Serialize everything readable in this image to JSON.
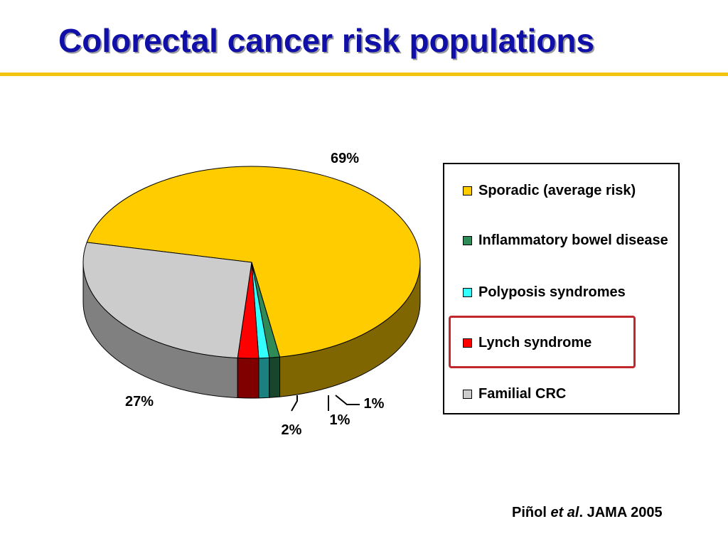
{
  "slide": {
    "title": "Colorectal cancer risk populations"
  },
  "citation": {
    "author": "Piñol",
    "etal": "et al",
    "rest": ". JAMA 2005"
  },
  "chart_data": {
    "type": "pie",
    "style": "3d",
    "title": "",
    "legend_position": "right",
    "highlighted": "Lynch syndrome",
    "slices": [
      {
        "name": "Sporadic (average risk)",
        "value": 69,
        "label": "69%",
        "color": "#ffcc00",
        "side_color": "#806600"
      },
      {
        "name": "Inflammatory bowel disease",
        "value": 1,
        "label": "1%",
        "color": "#2e8b57",
        "side_color": "#17462c"
      },
      {
        "name": "Polyposis syndromes",
        "value": 1,
        "label": "1%",
        "color": "#33ffff",
        "side_color": "#1a8080"
      },
      {
        "name": "Lynch syndrome",
        "value": 2,
        "label": "2%",
        "color": "#ff0000",
        "side_color": "#800000"
      },
      {
        "name": "Familial CRC",
        "value": 27,
        "label": "27%",
        "color": "#cccccc",
        "side_color": "#808080"
      }
    ],
    "legend_entries": [
      {
        "name": "Sporadic (average risk)",
        "color": "#ffcc00"
      },
      {
        "name": "Inflammatory bowel disease",
        "color": "#2e8b57"
      },
      {
        "name": "Polyposis syndromes",
        "color": "#33ffff"
      },
      {
        "name": "Lynch syndrome",
        "color": "#ff0000"
      },
      {
        "name": "Familial CRC",
        "color": "#cccccc"
      }
    ]
  }
}
